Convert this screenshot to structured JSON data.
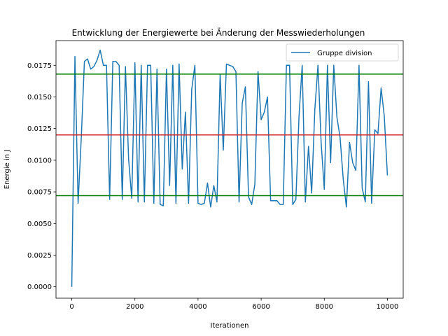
{
  "chart_data": {
    "type": "line",
    "title": "Entwicklung der Energiewerte bei Änderung der Messwiederholungen",
    "xlabel": "Iterationen",
    "ylabel": "Energie in J",
    "xlim": [
      -500,
      10500
    ],
    "ylim": [
      -0.0009,
      0.01945
    ],
    "xticks": [
      0,
      2000,
      4000,
      6000,
      8000,
      10000
    ],
    "xtick_labels": [
      "0",
      "2000",
      "4000",
      "6000",
      "8000",
      "10000"
    ],
    "yticks": [
      0.0,
      0.0025,
      0.005,
      0.0075,
      0.01,
      0.0125,
      0.015,
      0.0175
    ],
    "ytick_labels": [
      "0.0000",
      "0.0025",
      "0.0050",
      "0.0075",
      "0.0100",
      "0.0125",
      "0.0150",
      "0.0175"
    ],
    "legend_position": "upper right",
    "grid": false,
    "hlines": [
      {
        "y": 0.0168,
        "color": "#008000"
      },
      {
        "y": 0.012,
        "color": "#d62728"
      },
      {
        "y": 0.0072,
        "color": "#008000"
      }
    ],
    "series": [
      {
        "name": "Gruppe division",
        "color": "#1f77b4",
        "x": [
          0,
          100,
          200,
          300,
          400,
          500,
          600,
          700,
          800,
          900,
          1000,
          1100,
          1200,
          1300,
          1400,
          1500,
          1600,
          1700,
          1800,
          1900,
          2000,
          2100,
          2200,
          2300,
          2400,
          2500,
          2600,
          2700,
          2800,
          2900,
          3000,
          3100,
          3200,
          3300,
          3400,
          3500,
          3600,
          3700,
          3800,
          3900,
          4000,
          4100,
          4200,
          4300,
          4400,
          4500,
          4600,
          4700,
          4800,
          4900,
          5000,
          5100,
          5200,
          5300,
          5400,
          5500,
          5600,
          5700,
          5800,
          5900,
          6000,
          6100,
          6200,
          6300,
          6400,
          6500,
          6600,
          6700,
          6800,
          6900,
          7000,
          7100,
          7200,
          7300,
          7400,
          7500,
          7600,
          7700,
          7800,
          7900,
          8000,
          8100,
          8200,
          8300,
          8400,
          8500,
          8600,
          8700,
          8800,
          8900,
          9000,
          9100,
          9200,
          9300,
          9400,
          9500,
          9600,
          9700,
          9800,
          9900,
          10000
        ],
        "y": [
          0.0,
          0.0182,
          0.0066,
          0.0117,
          0.0178,
          0.018,
          0.0172,
          0.0174,
          0.0179,
          0.0187,
          0.0175,
          0.0175,
          0.0069,
          0.0178,
          0.0178,
          0.0175,
          0.0069,
          0.0174,
          0.0101,
          0.007,
          0.0177,
          0.0067,
          0.0175,
          0.0067,
          0.0175,
          0.0175,
          0.0066,
          0.0172,
          0.0065,
          0.0064,
          0.0172,
          0.008,
          0.0175,
          0.0066,
          0.0176,
          0.0093,
          0.0138,
          0.0066,
          0.0156,
          0.0175,
          0.0066,
          0.0065,
          0.0066,
          0.0082,
          0.0063,
          0.008,
          0.0067,
          0.0168,
          0.0108,
          0.0176,
          0.0175,
          0.0174,
          0.017,
          0.0067,
          0.0145,
          0.0158,
          0.0071,
          0.0065,
          0.0081,
          0.017,
          0.0132,
          0.0138,
          0.015,
          0.0068,
          0.0068,
          0.0068,
          0.0065,
          0.0065,
          0.0175,
          0.0175,
          0.0065,
          0.0069,
          0.0135,
          0.0175,
          0.0067,
          0.0111,
          0.0074,
          0.014,
          0.0175,
          0.0114,
          0.0077,
          0.0175,
          0.0098,
          0.0175,
          0.0134,
          0.0118,
          0.0085,
          0.0063,
          0.0114,
          0.0098,
          0.0092,
          0.0175,
          0.0078,
          0.0067,
          0.0162,
          0.0066,
          0.0124,
          0.0121,
          0.0157,
          0.0135,
          0.0088
        ]
      }
    ]
  }
}
